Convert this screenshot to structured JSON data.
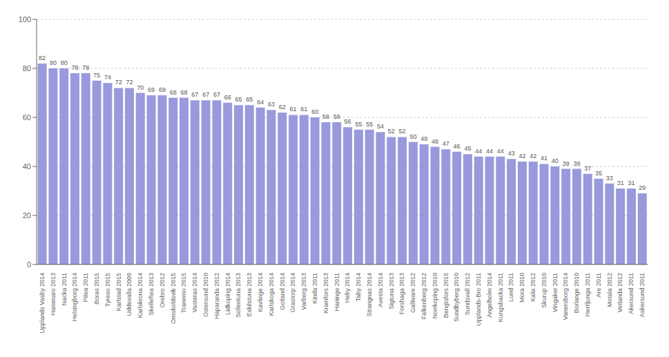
{
  "chart_data": {
    "type": "bar",
    "categories": [
      "Upplands Vasby 2014",
      "Hammaro 2013",
      "Nacka 2011",
      "Helsingborg 2014",
      "Pitea 2011",
      "Boras 2015",
      "Tyreso 2015",
      "Karlstad 2015",
      "Uddevalla 2009",
      "Karlskrona 2014",
      "Skelleftea 2013",
      "Orebro 2012",
      "Ornskoldsvik 2015",
      "Tranemo 2015",
      "Vasteras 2014",
      "Ostersund 2010",
      "Haparanda 2012",
      "Lidkoping 2014",
      "Sollentuna 2013",
      "Eskilstuna 2013",
      "Kavlinge 2014",
      "Karlskoga 2014",
      "Gotland 2014",
      "Grastorp 2014",
      "Varberg 2013",
      "Kinda 2011",
      "Kramfors 2013",
      "Haninge 2011",
      "Heby 2014",
      "Taby 2014",
      "Strangnas 2014",
      "Avesta 2014",
      "Sigtuna 2013",
      "Forshaga 2013",
      "Gallivare 2012",
      "Falkenberg 2012",
      "Norrkoping 2010",
      "Bengtsfors 2015",
      "Sundbyberg 2010",
      "Sundsvall 2012",
      "Upplands-Bro 2011",
      "Angelholm 2014",
      "Kungsbacka 2011",
      "Lund 2011",
      "Mora 2010",
      "Kalix 2012",
      "Skurup 2010",
      "Vingaker 2011",
      "Vanersborg 2014",
      "Borlange 2010",
      "Herrljunga 2011",
      "Are 2011",
      "Motala 2012",
      "Vetlanda 2012",
      "Akersund 2011",
      "Askersund 2011"
    ],
    "values": [
      82,
      80,
      80,
      78,
      78,
      75,
      74,
      72,
      72,
      70,
      69,
      69,
      68,
      68,
      67,
      67,
      67,
      66,
      65,
      65,
      64,
      63,
      62,
      61,
      61,
      60,
      58,
      58,
      56,
      55,
      55,
      54,
      52,
      52,
      50,
      49,
      48,
      47,
      46,
      45,
      44,
      44,
      44,
      43,
      42,
      42,
      41,
      40,
      39,
      39,
      37,
      35,
      33,
      31,
      31,
      29
    ],
    "color": "#9999dd",
    "ylim": [
      0,
      100
    ],
    "yticks": [
      0,
      20,
      40,
      60,
      80,
      100
    ],
    "grid": true,
    "data_labels": true
  }
}
